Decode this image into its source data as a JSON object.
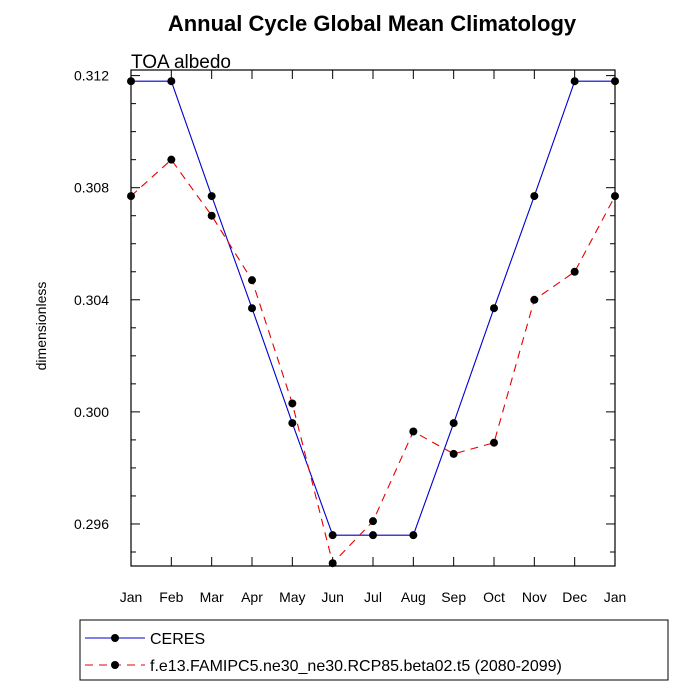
{
  "chart_data": {
    "type": "line",
    "title": "Annual Cycle Global Mean Climatology",
    "subtitle": "TOA albedo",
    "xlabel": "",
    "ylabel": "dimensionless",
    "categories": [
      "Jan",
      "Feb",
      "Mar",
      "Apr",
      "May",
      "Jun",
      "Jul",
      "Aug",
      "Sep",
      "Oct",
      "Nov",
      "Dec",
      "Jan"
    ],
    "ylim": [
      0.2945,
      0.3122
    ],
    "yticks": [
      0.296,
      0.3,
      0.304,
      0.308,
      0.312
    ],
    "ytick_labels": [
      "0.296",
      "0.300",
      "0.304",
      "0.308",
      "0.312"
    ],
    "series": [
      {
        "name": "CERES",
        "color": "#0000cc",
        "dash": "solid",
        "values": [
          0.3118,
          0.3118,
          0.3077,
          0.3037,
          0.2996,
          0.2956,
          0.2956,
          0.2956,
          0.2996,
          0.3037,
          0.3077,
          0.3118,
          0.3118
        ]
      },
      {
        "name": "f.e13.FAMIPC5.ne30_ne30.RCP85.beta02.t5 (2080-2099)",
        "color": "#e60000",
        "dash": "dashed",
        "values": [
          0.3077,
          0.309,
          0.307,
          0.3047,
          0.3003,
          0.2946,
          0.2961,
          0.2993,
          0.2985,
          0.2989,
          0.304,
          0.305,
          0.3077
        ]
      }
    ],
    "legend_position": "bottom"
  }
}
